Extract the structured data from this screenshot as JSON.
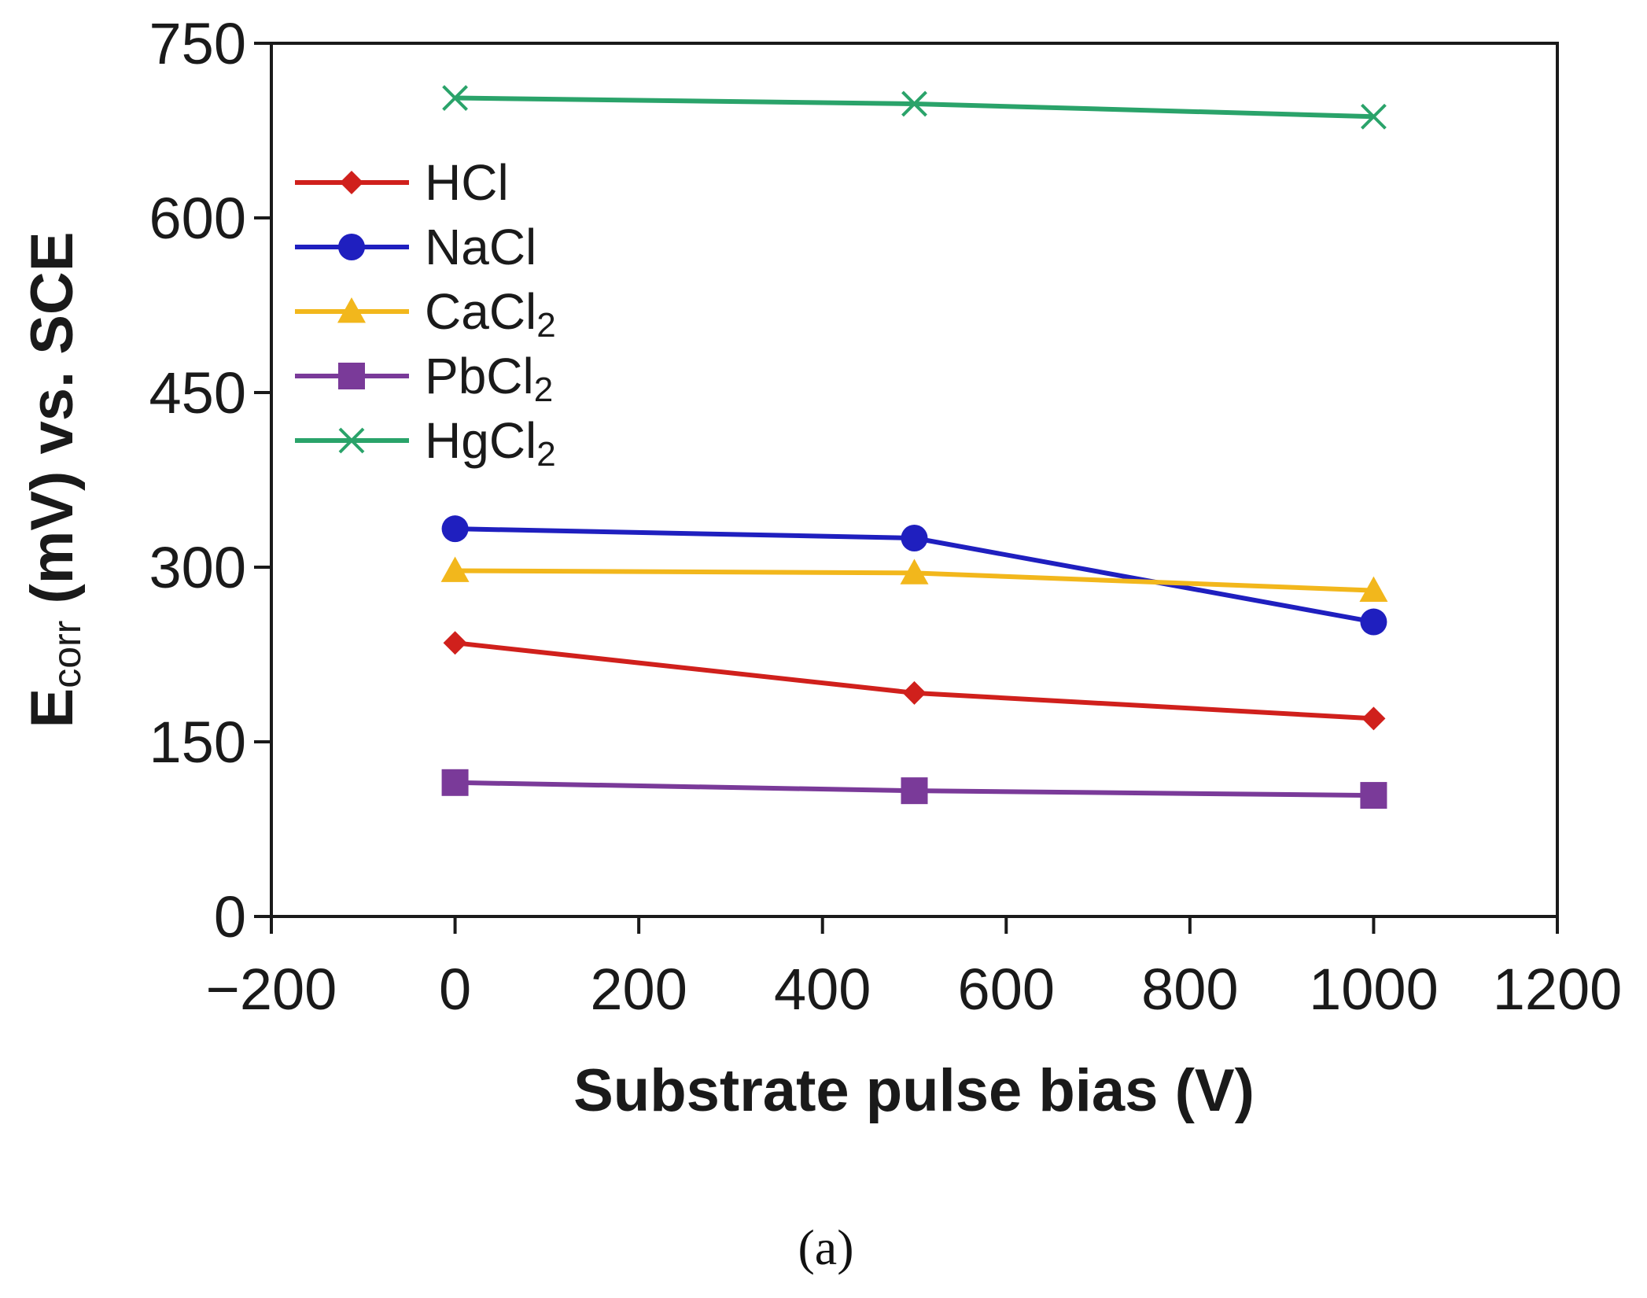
{
  "chart_data": {
    "type": "line",
    "title": "",
    "xlabel": "Substrate pulse bias (V)",
    "ylabel_main": "E",
    "ylabel_sub": "corr",
    "ylabel_rest": " (mV) vs. SCE",
    "x": [
      0,
      500,
      1000
    ],
    "xlim": [
      -200,
      1200
    ],
    "ylim": [
      0,
      750
    ],
    "xticks": [
      -200,
      0,
      200,
      400,
      600,
      800,
      1000,
      1200
    ],
    "xtick_labels": [
      "−200",
      "0",
      "200",
      "400",
      "600",
      "800",
      "1000",
      "1200"
    ],
    "yticks": [
      0,
      150,
      300,
      450,
      600,
      750
    ],
    "ytick_labels": [
      "0",
      "150",
      "300",
      "450",
      "600",
      "750"
    ],
    "grid": false,
    "legend_position": "top-left",
    "series": [
      {
        "name": "HCl",
        "label_main": "HCl",
        "label_sub": "",
        "values": [
          235,
          192,
          170
        ],
        "color": "#d0201c",
        "marker": "diamond"
      },
      {
        "name": "NaCl",
        "label_main": "NaCl",
        "label_sub": "",
        "values": [
          333,
          325,
          253
        ],
        "color": "#1f1fbf",
        "marker": "circle"
      },
      {
        "name": "CaCl2",
        "label_main": "CaCl",
        "label_sub": "2",
        "values": [
          297,
          295,
          280
        ],
        "color": "#f2b71c",
        "marker": "triangle"
      },
      {
        "name": "PbCl2",
        "label_main": "PbCl",
        "label_sub": "2",
        "values": [
          115,
          108,
          104
        ],
        "color": "#7a3a99",
        "marker": "square"
      },
      {
        "name": "HgCl2",
        "label_main": "HgCl",
        "label_sub": "2",
        "values": [
          703,
          698,
          687
        ],
        "color": "#2aa36a",
        "marker": "x"
      }
    ]
  },
  "caption": "(a)"
}
